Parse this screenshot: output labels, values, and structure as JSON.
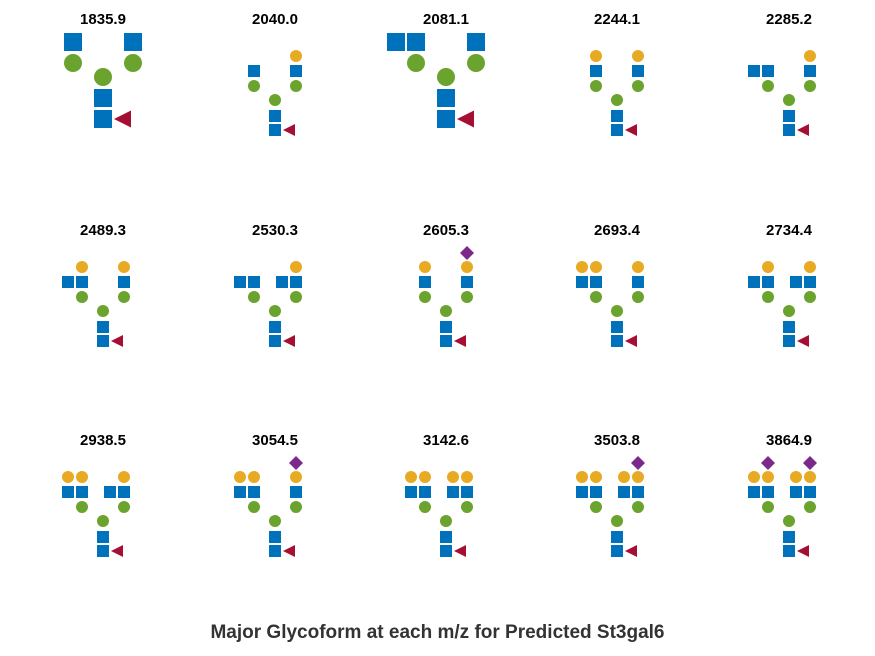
{
  "title": "Major Glycoform at each m/z for Predicted St3gal6",
  "colors": {
    "glcnac": "#0072bc",
    "man": "#6aa32e",
    "gal": "#e8aa22",
    "fuc": "#a50f34",
    "neuac": "#7b2a8b"
  },
  "legend_note": "GlcNAc=blue square, Man=green circle, Gal=yellow circle, Fuc=red triangle, NeuAc=purple diamond",
  "glycans": [
    {
      "mz": "1835.9",
      "left_gn": 1,
      "left_gal": 0,
      "right_gn": 1,
      "right_gal": 0,
      "left_sia": 0,
      "right_sia": 0,
      "bisect": 0,
      "large": true
    },
    {
      "mz": "2040.0",
      "left_gn": 1,
      "left_gal": 0,
      "right_gn": 1,
      "right_gal": 1,
      "left_sia": 0,
      "right_sia": 0,
      "bisect": 0,
      "large": false
    },
    {
      "mz": "2081.1",
      "left_gn": 2,
      "left_gal": 0,
      "right_gn": 1,
      "right_gal": 0,
      "left_sia": 0,
      "right_sia": 0,
      "bisect": 0,
      "large": true
    },
    {
      "mz": "2244.1",
      "left_gn": 1,
      "left_gal": 1,
      "right_gn": 1,
      "right_gal": 1,
      "left_sia": 0,
      "right_sia": 0,
      "bisect": 0,
      "large": false
    },
    {
      "mz": "2285.2",
      "left_gn": 2,
      "left_gal": 0,
      "right_gn": 1,
      "right_gal": 1,
      "left_sia": 0,
      "right_sia": 0,
      "bisect": 0,
      "large": false
    },
    {
      "mz": "2489.3",
      "left_gn": 2,
      "left_gal": 1,
      "right_gn": 1,
      "right_gal": 1,
      "left_sia": 0,
      "right_sia": 0,
      "bisect": 0,
      "large": false
    },
    {
      "mz": "2530.3",
      "left_gn": 2,
      "left_gal": 0,
      "right_gn": 2,
      "right_gal": 1,
      "left_sia": 0,
      "right_sia": 0,
      "bisect": 0,
      "large": false
    },
    {
      "mz": "2605.3",
      "left_gn": 1,
      "left_gal": 1,
      "right_gn": 1,
      "right_gal": 1,
      "left_sia": 0,
      "right_sia": 1,
      "bisect": 0,
      "large": false
    },
    {
      "mz": "2693.4",
      "left_gn": 2,
      "left_gal": 2,
      "right_gn": 1,
      "right_gal": 1,
      "left_sia": 0,
      "right_sia": 0,
      "bisect": 0,
      "large": false
    },
    {
      "mz": "2734.4",
      "left_gn": 2,
      "left_gal": 1,
      "right_gn": 2,
      "right_gal": 1,
      "left_sia": 0,
      "right_sia": 0,
      "bisect": 0,
      "large": false
    },
    {
      "mz": "2938.5",
      "left_gn": 2,
      "left_gal": 2,
      "right_gn": 2,
      "right_gal": 1,
      "left_sia": 0,
      "right_sia": 0,
      "bisect": 0,
      "large": false
    },
    {
      "mz": "3054.5",
      "left_gn": 2,
      "left_gal": 2,
      "right_gn": 1,
      "right_gal": 1,
      "left_sia": 0,
      "right_sia": 1,
      "bisect": 0,
      "large": false
    },
    {
      "mz": "3142.6",
      "left_gn": 2,
      "left_gal": 2,
      "right_gn": 2,
      "right_gal": 2,
      "left_sia": 0,
      "right_sia": 0,
      "bisect": 0,
      "large": false
    },
    {
      "mz": "3503.8",
      "left_gn": 2,
      "left_gal": 2,
      "right_gn": 2,
      "right_gal": 2,
      "left_sia": 0,
      "right_sia": 1,
      "bisect": 0,
      "large": false
    },
    {
      "mz": "3864.9",
      "left_gn": 2,
      "left_gal": 2,
      "right_gn": 2,
      "right_gal": 2,
      "left_sia": 1,
      "right_sia": 1,
      "bisect": 0,
      "large": false
    }
  ]
}
